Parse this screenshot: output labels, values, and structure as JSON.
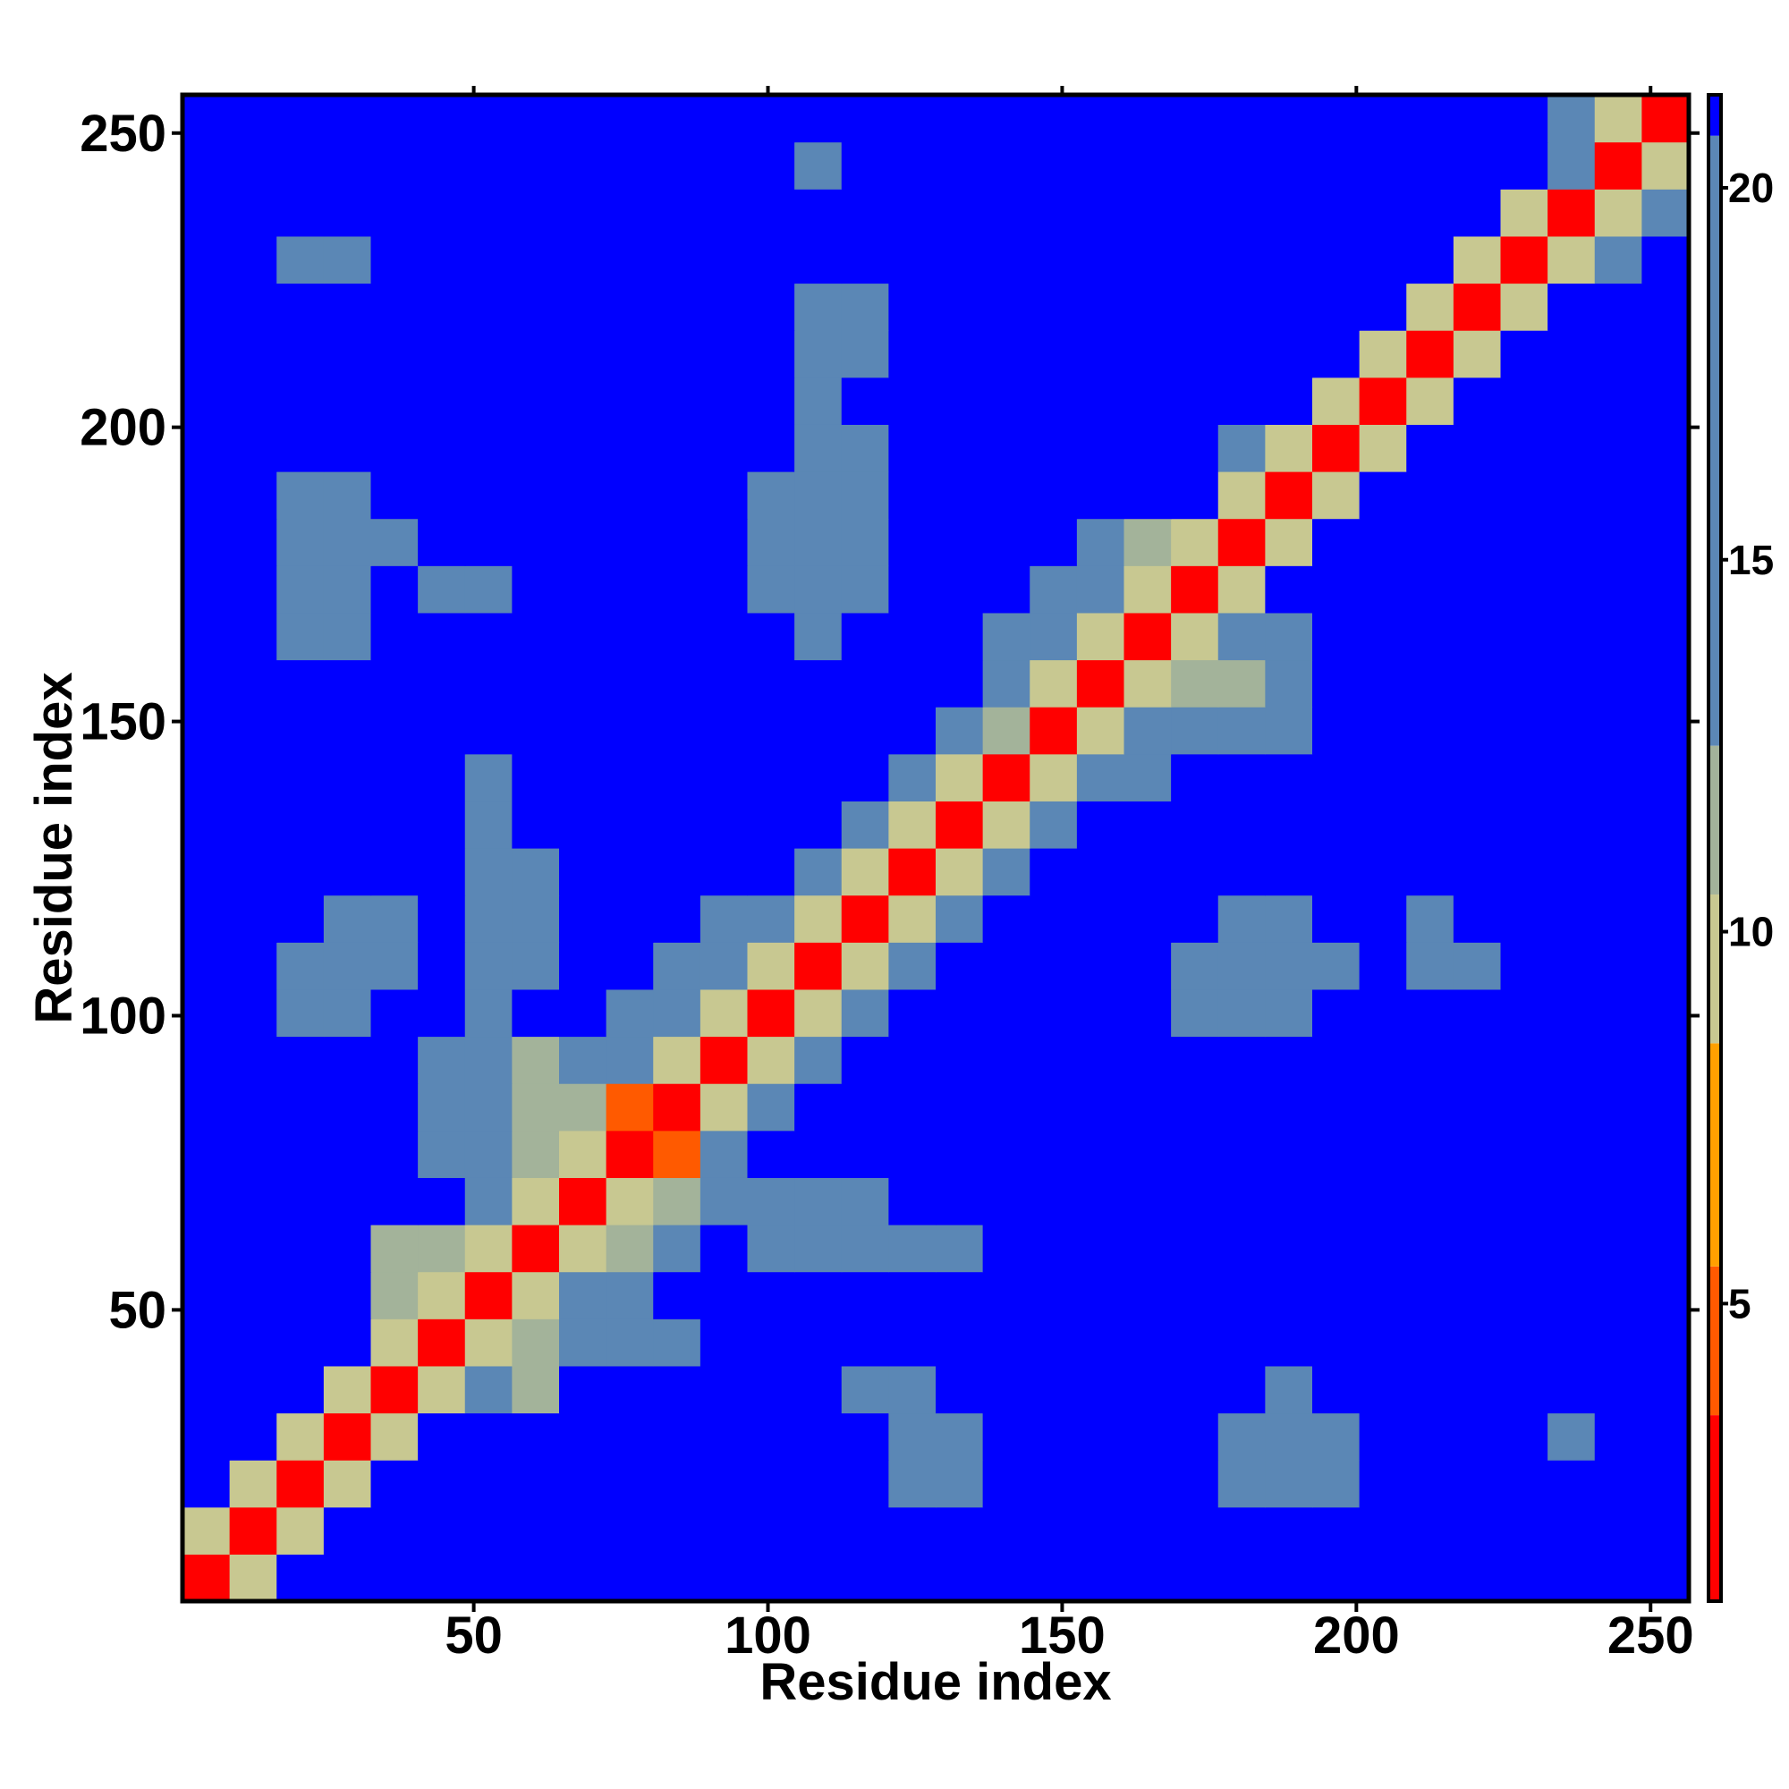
{
  "chart_data": {
    "type": "heatmap",
    "x_label": "Residue index",
    "y_label": "Residue index",
    "xlim": [
      0.5,
      256.5
    ],
    "ylim": [
      0.5,
      256.5
    ],
    "xticks": [
      50,
      100,
      150,
      200,
      250
    ],
    "yticks": [
      50,
      100,
      150,
      200,
      250
    ],
    "xbins": [
      0.5,
      8.5,
      16.5,
      24.5,
      32.5,
      40.5,
      48.5,
      56.5,
      64.5,
      72.5,
      80.5,
      88.5,
      96.5,
      104.5,
      112.5,
      120.5,
      128.5,
      136.5,
      144.5,
      152.5,
      160.5,
      168.5,
      176.5,
      184.5,
      192.5,
      200.5,
      208.5,
      216.5,
      224.5,
      232.5,
      240.5,
      248.5,
      256.5
    ],
    "ybins": [
      0.5,
      8.5,
      16.5,
      24.5,
      32.5,
      40.5,
      48.5,
      56.5,
      64.5,
      72.5,
      80.5,
      88.5,
      96.5,
      104.5,
      112.5,
      120.5,
      128.5,
      136.5,
      144.5,
      152.5,
      160.5,
      168.5,
      176.5,
      184.5,
      192.5,
      200.5,
      208.5,
      216.5,
      224.5,
      232.5,
      240.5,
      248.5,
      256.5
    ],
    "zlim": [
      1,
      21.25
    ],
    "zticks": [
      5,
      10,
      15,
      20
    ],
    "colorscale": [
      {
        "value": 3.5,
        "color": "#ff0000"
      },
      {
        "value": 5.5,
        "color": "#ff5a00"
      },
      {
        "value": 8.5,
        "color": "#ffa000"
      },
      {
        "value": 10.5,
        "color": "#c8c891"
      },
      {
        "value": 12.5,
        "color": "#a3b39a"
      },
      {
        "value": 20.7,
        "color": "#5b87b5"
      },
      {
        "value": 21.25,
        "color": "#0000ff"
      }
    ],
    "values": [
      [
        3,
        9,
        21,
        21,
        21,
        21,
        21,
        21,
        21,
        21,
        21,
        21,
        21,
        21,
        21,
        21,
        21,
        21,
        21,
        21,
        21,
        21,
        21,
        21,
        21,
        21,
        21,
        21,
        21,
        21,
        21,
        21
      ],
      [
        9,
        3,
        9,
        21,
        21,
        21,
        21,
        21,
        21,
        21,
        21,
        21,
        21,
        21,
        21,
        21,
        21,
        21,
        21,
        21,
        21,
        21,
        21,
        21,
        21,
        21,
        21,
        21,
        21,
        21,
        21,
        21
      ],
      [
        21,
        9,
        3,
        9,
        21,
        21,
        21,
        21,
        21,
        21,
        21,
        21,
        21,
        21,
        21,
        18,
        18,
        21,
        21,
        21,
        21,
        21,
        17,
        17,
        18,
        21,
        21,
        21,
        21,
        21,
        21,
        21
      ],
      [
        21,
        21,
        9,
        3,
        9,
        21,
        21,
        21,
        21,
        21,
        21,
        21,
        21,
        21,
        21,
        18,
        18,
        21,
        21,
        21,
        21,
        21,
        17,
        16,
        17,
        21,
        21,
        21,
        21,
        19,
        21,
        21
      ],
      [
        21,
        21,
        21,
        9,
        3,
        9,
        14,
        12,
        21,
        21,
        21,
        21,
        21,
        21,
        19,
        19,
        21,
        21,
        21,
        21,
        21,
        21,
        21,
        18,
        21,
        21,
        21,
        21,
        21,
        21,
        21,
        21
      ],
      [
        21,
        21,
        21,
        21,
        9,
        3,
        9,
        12,
        17,
        17,
        17,
        21,
        21,
        21,
        21,
        21,
        21,
        21,
        21,
        21,
        21,
        21,
        21,
        21,
        21,
        21,
        21,
        21,
        21,
        21,
        21,
        21
      ],
      [
        21,
        21,
        21,
        21,
        12,
        9,
        3,
        9,
        14,
        15,
        21,
        21,
        21,
        21,
        21,
        21,
        21,
        21,
        21,
        21,
        21,
        21,
        21,
        21,
        21,
        21,
        21,
        21,
        21,
        21,
        21,
        21
      ],
      [
        21,
        21,
        21,
        21,
        12,
        12,
        9,
        3,
        9,
        12,
        14,
        21,
        18,
        18,
        18,
        18,
        18,
        21,
        21,
        21,
        21,
        21,
        21,
        21,
        21,
        21,
        21,
        21,
        21,
        21,
        21,
        21
      ],
      [
        21,
        21,
        21,
        21,
        21,
        21,
        13,
        9,
        3,
        9,
        11,
        17,
        18,
        17,
        19,
        21,
        21,
        21,
        21,
        21,
        21,
        21,
        21,
        21,
        21,
        21,
        21,
        21,
        21,
        21,
        21,
        21
      ],
      [
        21,
        21,
        21,
        21,
        21,
        17,
        14,
        12,
        9,
        3,
        5,
        14,
        21,
        21,
        21,
        21,
        21,
        21,
        21,
        21,
        21,
        21,
        21,
        21,
        21,
        21,
        21,
        21,
        21,
        21,
        21,
        21
      ],
      [
        21,
        21,
        21,
        21,
        21,
        17,
        13,
        12,
        11,
        5,
        3,
        9,
        15,
        21,
        21,
        21,
        21,
        21,
        21,
        21,
        21,
        21,
        21,
        21,
        21,
        21,
        21,
        21,
        21,
        21,
        21,
        21
      ],
      [
        21,
        21,
        21,
        21,
        21,
        18,
        17,
        12,
        13,
        14,
        9,
        3,
        9,
        16,
        21,
        21,
        21,
        21,
        21,
        21,
        21,
        21,
        21,
        21,
        21,
        21,
        21,
        21,
        21,
        21,
        21,
        21
      ],
      [
        21,
        21,
        19,
        19,
        21,
        21,
        18,
        21,
        21,
        17,
        14,
        9,
        3,
        9,
        14,
        21,
        21,
        21,
        21,
        21,
        21,
        17,
        17,
        18,
        21,
        21,
        21,
        21,
        21,
        21,
        21,
        21
      ],
      [
        21,
        21,
        17,
        17,
        18,
        21,
        18,
        18,
        21,
        21,
        16,
        14,
        9,
        3,
        9,
        14,
        21,
        21,
        21,
        21,
        21,
        17,
        16,
        16,
        17,
        21,
        18,
        18,
        21,
        21,
        21,
        21
      ],
      [
        21,
        21,
        21,
        18,
        18,
        21,
        18,
        19,
        21,
        21,
        21,
        17,
        14,
        9,
        3,
        9,
        14,
        21,
        21,
        21,
        21,
        21,
        17,
        17,
        21,
        21,
        19,
        21,
        21,
        21,
        21,
        21
      ],
      [
        21,
        21,
        21,
        21,
        21,
        21,
        17,
        18,
        21,
        21,
        21,
        21,
        21,
        14,
        9,
        3,
        9,
        14,
        21,
        21,
        21,
        21,
        21,
        21,
        21,
        21,
        21,
        21,
        21,
        21,
        21,
        21
      ],
      [
        21,
        21,
        21,
        21,
        21,
        21,
        18,
        21,
        21,
        21,
        21,
        21,
        21,
        21,
        14,
        9,
        3,
        9,
        14,
        21,
        21,
        21,
        21,
        21,
        21,
        21,
        21,
        21,
        21,
        21,
        21,
        21
      ],
      [
        21,
        21,
        21,
        21,
        21,
        21,
        17,
        21,
        21,
        21,
        21,
        21,
        21,
        21,
        21,
        14,
        9,
        3,
        9,
        14,
        17,
        21,
        21,
        21,
        21,
        21,
        21,
        21,
        21,
        21,
        21,
        21
      ],
      [
        21,
        21,
        21,
        21,
        21,
        21,
        21,
        21,
        21,
        21,
        21,
        21,
        21,
        21,
        21,
        21,
        14,
        11,
        3,
        9,
        15,
        17,
        14,
        16,
        21,
        21,
        21,
        21,
        21,
        21,
        21,
        21
      ],
      [
        21,
        21,
        21,
        21,
        21,
        21,
        21,
        21,
        21,
        21,
        21,
        21,
        21,
        21,
        21,
        21,
        21,
        14,
        9,
        3,
        9,
        12,
        12,
        13,
        21,
        21,
        21,
        21,
        21,
        21,
        21,
        21
      ],
      [
        21,
        21,
        18,
        18,
        21,
        21,
        21,
        21,
        21,
        21,
        21,
        21,
        21,
        18,
        21,
        21,
        21,
        14,
        14,
        9,
        3,
        9,
        13,
        14,
        21,
        21,
        21,
        21,
        21,
        21,
        21,
        21
      ],
      [
        21,
        21,
        17,
        18,
        21,
        18,
        18,
        21,
        21,
        21,
        21,
        21,
        17,
        17,
        17,
        21,
        21,
        21,
        14,
        13,
        9,
        3,
        9,
        21,
        21,
        21,
        21,
        21,
        21,
        21,
        21,
        21
      ],
      [
        21,
        21,
        17,
        17,
        17,
        21,
        21,
        21,
        21,
        21,
        21,
        21,
        17,
        16,
        17,
        21,
        21,
        21,
        21,
        13,
        12,
        9,
        3,
        9,
        21,
        21,
        21,
        21,
        21,
        21,
        21,
        21
      ],
      [
        21,
        21,
        17,
        17,
        21,
        21,
        21,
        21,
        21,
        21,
        21,
        21,
        17,
        17,
        18,
        21,
        21,
        21,
        21,
        21,
        21,
        21,
        9,
        3,
        9,
        21,
        21,
        21,
        21,
        21,
        21,
        21
      ],
      [
        21,
        21,
        21,
        21,
        21,
        21,
        21,
        21,
        21,
        21,
        21,
        21,
        21,
        18,
        18,
        21,
        21,
        21,
        21,
        21,
        21,
        21,
        14,
        10,
        3,
        9,
        21,
        21,
        21,
        21,
        21,
        21
      ],
      [
        21,
        21,
        21,
        21,
        21,
        21,
        21,
        21,
        21,
        21,
        21,
        21,
        21,
        18,
        21,
        21,
        21,
        21,
        21,
        21,
        21,
        21,
        21,
        21,
        9,
        3,
        9,
        21,
        21,
        21,
        21,
        21
      ],
      [
        21,
        21,
        21,
        21,
        21,
        21,
        21,
        21,
        21,
        21,
        21,
        21,
        21,
        19,
        19,
        21,
        21,
        21,
        21,
        21,
        21,
        21,
        21,
        21,
        21,
        9,
        3,
        9,
        21,
        21,
        21,
        21
      ],
      [
        21,
        21,
        21,
        21,
        21,
        21,
        21,
        21,
        21,
        21,
        21,
        21,
        21,
        18,
        18,
        21,
        21,
        21,
        21,
        21,
        21,
        21,
        21,
        21,
        21,
        21,
        9,
        3,
        9,
        21,
        21,
        21
      ],
      [
        21,
        21,
        18,
        19,
        21,
        21,
        21,
        21,
        21,
        21,
        21,
        21,
        21,
        21,
        21,
        21,
        21,
        21,
        21,
        21,
        21,
        21,
        21,
        21,
        21,
        21,
        21,
        9,
        3,
        9,
        17,
        21
      ],
      [
        21,
        21,
        21,
        21,
        21,
        21,
        21,
        21,
        21,
        21,
        21,
        21,
        21,
        21,
        21,
        21,
        21,
        21,
        21,
        21,
        21,
        21,
        21,
        21,
        21,
        21,
        21,
        21,
        9,
        3,
        9,
        17
      ],
      [
        21,
        21,
        21,
        21,
        21,
        21,
        21,
        21,
        21,
        21,
        21,
        21,
        21,
        19,
        21,
        21,
        21,
        21,
        21,
        21,
        21,
        21,
        21,
        21,
        21,
        21,
        21,
        21,
        21,
        17,
        3,
        9
      ],
      [
        21,
        21,
        21,
        21,
        21,
        21,
        21,
        21,
        21,
        21,
        21,
        21,
        21,
        21,
        21,
        21,
        21,
        21,
        21,
        21,
        21,
        21,
        21,
        21,
        21,
        21,
        21,
        21,
        21,
        18,
        9,
        3
      ]
    ]
  }
}
